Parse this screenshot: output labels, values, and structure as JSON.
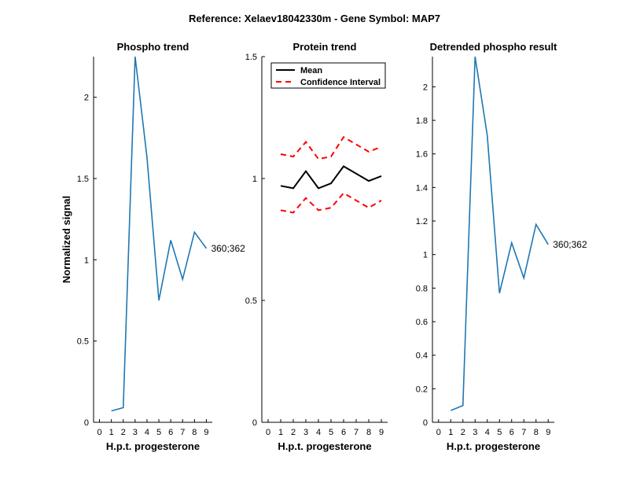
{
  "suptitle": "Reference:  Xelaev18042330m - Gene Symbol:  MAP7",
  "colors": {
    "series": "#1f77b4",
    "mean": "#000000",
    "ci": "#ff0000",
    "axis": "#000000",
    "background": "#ffffff"
  },
  "chart_data": [
    {
      "type": "line",
      "title": "Phospho trend",
      "xlabel": "H.p.t. progesterone",
      "ylabel": "Normalized signal",
      "x_ticks": [
        "0",
        "1",
        "2",
        "3",
        "4",
        "5",
        "6",
        "7",
        "8",
        "9"
      ],
      "y_ticks": [
        "0",
        "0.5",
        "1",
        "1.5",
        "2"
      ],
      "ylim": [
        0,
        2.25
      ],
      "series": [
        {
          "name": "360;362",
          "x": [
            1,
            2,
            3,
            4,
            5,
            6,
            7,
            8,
            9
          ],
          "values": [
            0.07,
            0.09,
            2.25,
            1.63,
            0.75,
            1.12,
            0.88,
            1.17,
            1.07
          ]
        }
      ],
      "annotation": "360;362"
    },
    {
      "type": "line",
      "title": "Protein trend",
      "xlabel": "H.p.t. progesterone",
      "ylabel": "",
      "x_ticks": [
        "0",
        "1",
        "2",
        "3",
        "4",
        "5",
        "6",
        "7",
        "8",
        "9"
      ],
      "y_ticks": [
        "0",
        "0.5",
        "1",
        "1.5"
      ],
      "ylim": [
        0,
        1.5
      ],
      "legend": {
        "position": "top-left",
        "entries": [
          "Mean",
          "Confidence Interval"
        ]
      },
      "series": [
        {
          "name": "Mean",
          "x": [
            1,
            2,
            3,
            4,
            5,
            6,
            7,
            8,
            9
          ],
          "values": [
            0.97,
            0.96,
            1.03,
            0.96,
            0.98,
            1.05,
            1.02,
            0.99,
            1.01
          ]
        },
        {
          "name": "Upper CI",
          "x": [
            1,
            2,
            3,
            4,
            5,
            6,
            7,
            8,
            9
          ],
          "values": [
            1.1,
            1.09,
            1.15,
            1.08,
            1.09,
            1.17,
            1.14,
            1.11,
            1.13
          ]
        },
        {
          "name": "Lower CI",
          "x": [
            1,
            2,
            3,
            4,
            5,
            6,
            7,
            8,
            9
          ],
          "values": [
            0.87,
            0.86,
            0.92,
            0.87,
            0.88,
            0.94,
            0.91,
            0.88,
            0.91
          ]
        }
      ]
    },
    {
      "type": "line",
      "title": "Detrended phospho result",
      "xlabel": "H.p.t. progesterone",
      "ylabel": "",
      "x_ticks": [
        "0",
        "1",
        "2",
        "3",
        "4",
        "5",
        "6",
        "7",
        "8",
        "9"
      ],
      "y_ticks": [
        "0",
        "0.2",
        "0.4",
        "0.6",
        "0.8",
        "1",
        "1.2",
        "1.4",
        "1.6",
        "1.8",
        "2"
      ],
      "ylim": [
        0,
        2.18
      ],
      "series": [
        {
          "name": "360;362",
          "x": [
            1,
            2,
            3,
            4,
            5,
            6,
            7,
            8,
            9
          ],
          "values": [
            0.07,
            0.1,
            2.18,
            1.71,
            0.77,
            1.07,
            0.86,
            1.18,
            1.06
          ]
        }
      ],
      "annotation": "360;362"
    }
  ]
}
